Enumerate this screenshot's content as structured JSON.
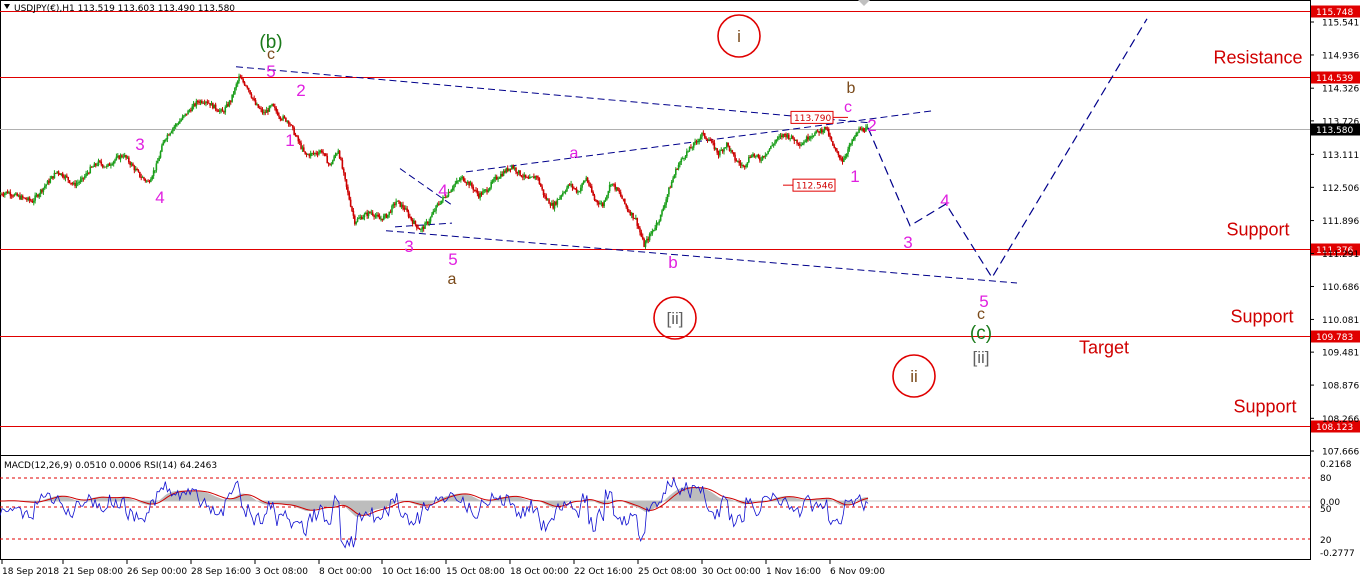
{
  "header": {
    "symbol_info": "USDJPY(€),H1  113.519 113.603 113.490 113.580",
    "indicator_info": "MACD(12,26,9) 0.0510 0.0006  RSI(14) 64.2463"
  },
  "colors": {
    "level_line": "#e00000",
    "trend_line": "#00008b",
    "bull": "#1a9e1a",
    "bear": "#cc0000",
    "wave_magenta": "#e020e0",
    "wave_brown": "#7a4a1a",
    "wave_green": "#1a7a1a",
    "wave_gray": "#606060",
    "macd_hist": "#bdbdbd",
    "macd_signal": "#d00000",
    "rsi_line": "#1010d0"
  },
  "chart_data": {
    "type": "line",
    "series": [
      {
        "values": [
          112.38,
          112.42,
          112.35,
          112.3,
          112.25,
          112.44,
          112.62,
          112.8,
          112.7,
          112.55,
          112.64,
          112.84,
          112.96,
          112.88,
          113.02,
          113.1,
          112.92,
          112.72,
          112.6,
          112.9,
          113.4,
          113.6,
          113.75,
          113.92,
          114.08,
          114.1,
          113.98,
          113.88,
          114.1,
          114.52,
          114.36,
          114.02,
          113.86,
          114.0,
          113.8,
          113.72,
          113.4,
          113.1,
          113.12,
          113.18,
          112.9,
          113.2,
          112.5,
          111.88,
          111.98,
          112.05,
          111.92,
          112.0,
          112.25,
          112.12,
          111.88,
          111.72,
          111.9,
          112.18,
          112.35,
          112.55,
          112.68,
          112.55,
          112.36,
          112.46,
          112.66,
          112.78,
          112.9,
          112.75,
          112.64,
          112.72,
          112.32,
          112.16,
          112.38,
          112.56,
          112.42,
          112.68,
          112.28,
          112.18,
          112.6,
          112.4,
          112.1,
          111.92,
          111.44,
          111.7,
          111.98,
          112.46,
          112.88,
          113.12,
          113.28,
          113.48,
          113.36,
          113.12,
          113.3,
          113.02,
          112.88,
          113.12,
          113.02,
          113.18,
          113.38,
          113.48,
          113.4,
          113.3,
          113.45,
          113.52,
          113.6,
          113.2,
          113.0,
          113.3,
          113.56,
          113.58
        ]
      }
    ],
    "x_ticks": [
      "18 Sep 2018",
      "21 Sep 08:00",
      "26 Sep 00:00",
      "28 Sep 16:00",
      "3 Oct 08:00",
      "8 Oct 00:00",
      "10 Oct 16:00",
      "15 Oct 08:00",
      "18 Oct 00:00",
      "22 Oct 16:00",
      "25 Oct 08:00",
      "30 Oct 00:00",
      "1 Nov 16:00",
      "6 Nov 09:00"
    ],
    "y_ticks": [
      "115.541",
      "114.936",
      "114.326",
      "113.726",
      "113.111",
      "112.506",
      "111.896",
      "111.291",
      "110.686",
      "110.081",
      "109.481",
      "108.876",
      "108.266",
      "107.666"
    ],
    "ylim": [
      107.4,
      115.85
    ],
    "levels": [
      {
        "value": 115.748,
        "label": "115.748",
        "text": ""
      },
      {
        "value": 114.539,
        "label": "114.539",
        "text": "Resistance"
      },
      {
        "value": 113.58,
        "label": "113.580",
        "text": ""
      },
      {
        "value": 111.376,
        "label": "111.376",
        "text": "Support"
      },
      {
        "value": 109.783,
        "label": "109.783",
        "text": "Support"
      },
      {
        "value": 108.123,
        "label": "108.123",
        "text": "Support"
      }
    ],
    "target_label": "Target",
    "price_labels": [
      {
        "value": 113.79,
        "text": "113.790"
      },
      {
        "value": 112.546,
        "text": "112.546"
      }
    ],
    "wave_labels": [
      {
        "text": "(b)",
        "kind": "green"
      },
      {
        "text": "c",
        "kind": "brown"
      },
      {
        "text": "5",
        "kind": "magenta"
      },
      {
        "text": "2",
        "kind": "magenta"
      },
      {
        "text": "1",
        "kind": "magenta"
      },
      {
        "text": "3",
        "kind": "magenta"
      },
      {
        "text": "4",
        "kind": "magenta"
      },
      {
        "text": "4",
        "kind": "magenta"
      },
      {
        "text": "3",
        "kind": "magenta"
      },
      {
        "text": "5",
        "kind": "magenta"
      },
      {
        "text": "a",
        "kind": "brown"
      },
      {
        "text": "a",
        "kind": "magenta"
      },
      {
        "text": "b",
        "kind": "magenta"
      },
      {
        "text": "b",
        "kind": "brown"
      },
      {
        "text": "c",
        "kind": "magenta"
      },
      {
        "text": "2",
        "kind": "magenta"
      },
      {
        "text": "1",
        "kind": "magenta"
      },
      {
        "text": "3",
        "kind": "magenta"
      },
      {
        "text": "4",
        "kind": "magenta"
      },
      {
        "text": "5",
        "kind": "magenta"
      },
      {
        "text": "c",
        "kind": "brown"
      },
      {
        "text": "(c)",
        "kind": "green"
      },
      {
        "text": "[ii]",
        "kind": "gray"
      }
    ],
    "circle_labels": [
      {
        "text": "i"
      },
      {
        "text": "[ii]"
      },
      {
        "text": "ii"
      }
    ],
    "projection": {
      "values": [
        113.6,
        111.8,
        112.2,
        110.85,
        115.6
      ]
    },
    "indicator": {
      "macd_ticks": [
        "0.2168",
        "0.00",
        "-0.2777"
      ],
      "rsi_ticks": [
        "80",
        "50",
        "20"
      ]
    }
  }
}
